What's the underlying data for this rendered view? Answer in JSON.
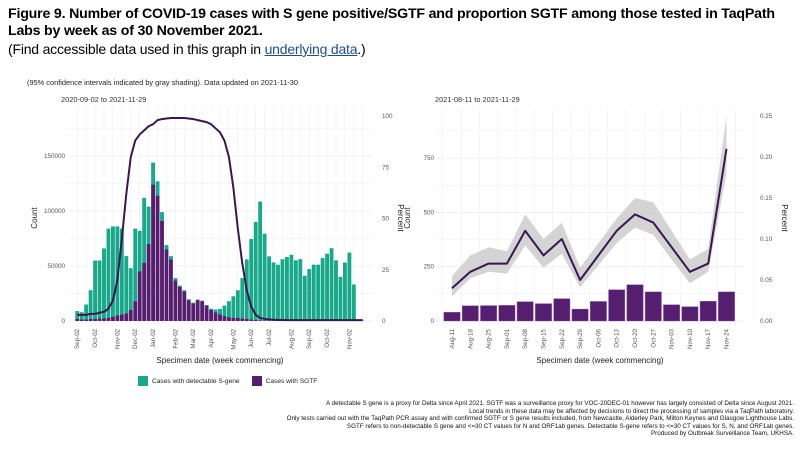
{
  "header": {
    "title": "Figure 9. Number of COVID-19 cases with S gene positive/SGTF and proportion SGTF among those tested in TaqPath Labs by week as of 30 November 2021.",
    "subtitle_prefix": "(Find accessible data used in this graph in ",
    "subtitle_link": "underlying data",
    "subtitle_suffix": ".)"
  },
  "caption": "(95% confidence intervals indicated by gray shading). Data updated on 2021-11-30",
  "legend": [
    {
      "label": "Cases with detectable S-gene",
      "color": "#1aa88a"
    },
    {
      "label": "Cases with SGTF",
      "color": "#561e6f"
    }
  ],
  "footnotes": [
    "A detectable S gene is a proxy for Delta since April 2021. SGTF was a surveillance proxy for VOC-20DEC-01 however has largely consisted of Delta since August 2021.",
    "Local trends in these data may be affected by decisions to direct the processing of samples via a TaqPath laboratory.",
    "Only tests carried out with the TaqPath PCR assay and with confirmed SGTF or S gene results included, from Newcastle, Alderley Park, Milton Keynes and Glasgow Lighthouse Labs.",
    "SGTF refers to non-detectable S gene and <=30 CT values for N and ORF1ab genes. Detectable S-gene refers to <=30 CT values for S, N, and ORF1ab genes.",
    "Produced by Outbreak Surveillance Team, UKHSA."
  ],
  "colors": {
    "s_gene": "#1aa88a",
    "sgtf": "#561e6f",
    "line": "#3b1650",
    "ci": "#cfcfcf",
    "grid": "#ececec"
  },
  "chart_data": [
    {
      "type": "bar",
      "stacked": true,
      "subtitle": "2020-09-02 to 2021-11-29",
      "xlabel": "Specimen date (week commencing)",
      "ylabel": "Count",
      "y2label": "Percent",
      "ylim": [
        0,
        185000
      ],
      "y2lim": [
        0,
        100
      ],
      "yticks": [
        0,
        50000,
        100000,
        150000
      ],
      "y2ticks": [
        0,
        25,
        50,
        75,
        100
      ],
      "xtick_labels": [
        "Sep-02",
        "Oct-02",
        "Nov-02",
        "Dec-02",
        "Jan-02",
        "Feb-02",
        "Mar-02",
        "Apr-02",
        "May-02",
        "Jun-02",
        "Jul-02",
        "Aug-02",
        "Sep-02",
        "Oct-02",
        "Nov-02"
      ],
      "xtick_week_index": [
        0,
        4,
        9,
        13,
        17,
        22,
        26,
        30,
        35,
        39,
        43,
        48,
        52,
        56,
        61
      ],
      "grid": true,
      "legend_position": "bottom",
      "series": [
        {
          "name": "Cases with SGTF",
          "values": [
            2000,
            1500,
            1500,
            2000,
            2000,
            2500,
            2500,
            3000,
            4000,
            5000,
            6000,
            7000,
            10000,
            18000,
            45000,
            53000,
            70000,
            124000,
            114000,
            91000,
            65000,
            56000,
            37000,
            31000,
            27000,
            19000,
            16000,
            19000,
            18000,
            14000,
            10000,
            8000,
            6000,
            4500,
            3500,
            3000,
            3000,
            2500,
            2000,
            1500,
            1000,
            600,
            400,
            300,
            250,
            200,
            200,
            200,
            200,
            200,
            200,
            200,
            200,
            200,
            200,
            200,
            200,
            200,
            200,
            200,
            200,
            200,
            200,
            200,
            200
          ]
        },
        {
          "name": "Cases with detectable S-gene",
          "values": [
            7000,
            6500,
            13500,
            26000,
            53000,
            52500,
            63500,
            81000,
            82000,
            81000,
            78000,
            52000,
            38000,
            66000,
            37000,
            59000,
            34000,
            20000,
            13000,
            8000,
            4000,
            3000,
            2000,
            1200,
            1000,
            800,
            700,
            500,
            500,
            600,
            1200,
            2500,
            5000,
            9500,
            14500,
            19500,
            25000,
            36500,
            54000,
            73000,
            89000,
            108000,
            79000,
            58500,
            53000,
            51000,
            56000,
            58000,
            60000,
            55000,
            56000,
            41000,
            47000,
            51000,
            51000,
            57000,
            61000,
            66000,
            55000,
            40000,
            53000,
            62000,
            33000,
            0,
            0
          ]
        }
      ],
      "percent_sgtf_line": [
        3,
        3,
        3,
        3.5,
        3.5,
        4,
        4.5,
        6,
        10,
        20,
        40,
        62,
        80,
        88,
        91,
        93,
        95,
        96,
        98,
        98.5,
        98.8,
        99,
        99,
        99,
        99,
        98.8,
        98.5,
        98,
        97.5,
        97,
        96,
        94,
        92,
        88,
        80,
        65,
        45,
        28,
        15,
        7,
        3,
        1.5,
        1,
        0.8,
        0.6,
        0.5,
        0.5,
        0.4,
        0.4,
        0.4,
        0.4,
        0.4,
        0.4,
        0.4,
        0.4,
        0.4,
        0.4,
        0.4,
        0.4,
        0.4,
        0.4,
        0.4,
        0.4,
        0.4,
        0.4
      ]
    },
    {
      "type": "bar",
      "subtitle": "2021-08-11 to 2021-11-29",
      "xlabel": "Specimen date (week commencing)",
      "ylabel": "Count",
      "y2label": "Percent",
      "ylim": [
        0,
        950
      ],
      "y2lim": [
        0,
        0.25
      ],
      "yticks": [
        0,
        250,
        500,
        750
      ],
      "y2ticks": [
        0.0,
        0.05,
        0.1,
        0.15,
        0.2,
        0.25
      ],
      "categories": [
        "Aug-11",
        "Aug-18",
        "Aug-25",
        "Sep-01",
        "Sep-08",
        "Sep-15",
        "Sep-22",
        "Sep-29",
        "Oct-06",
        "Oct-13",
        "Oct-20",
        "Oct-27",
        "Nov-03",
        "Nov-10",
        "Nov-17",
        "Nov-24"
      ],
      "grid": true,
      "series": [
        {
          "name": "Cases with SGTF",
          "values": [
            40,
            70,
            71,
            72,
            89,
            80,
            103,
            55,
            90,
            144,
            167,
            134,
            75,
            66,
            91,
            134
          ]
        }
      ],
      "percent_sgtf_line": [
        0.04,
        0.06,
        0.07,
        0.07,
        0.11,
        0.08,
        0.1,
        0.05,
        0.08,
        0.11,
        0.13,
        0.12,
        0.09,
        0.06,
        0.07,
        0.21
      ],
      "ci_lower": [
        0.03,
        0.052,
        0.06,
        0.058,
        0.092,
        0.065,
        0.082,
        0.041,
        0.068,
        0.095,
        0.114,
        0.105,
        0.075,
        0.046,
        0.06,
        0.18
      ],
      "ci_upper": [
        0.055,
        0.08,
        0.09,
        0.085,
        0.13,
        0.1,
        0.12,
        0.065,
        0.095,
        0.125,
        0.15,
        0.145,
        0.11,
        0.075,
        0.088,
        0.25
      ]
    }
  ]
}
